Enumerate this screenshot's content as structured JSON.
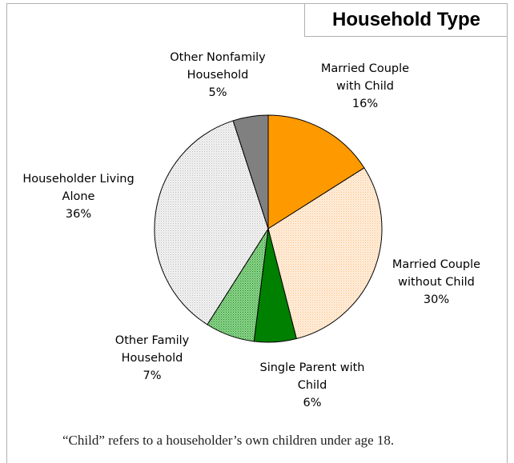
{
  "chart_data": {
    "type": "pie",
    "title": "Household Type",
    "slices": [
      {
        "label_lines": [
          "Married Couple",
          "with Child"
        ],
        "value": 16,
        "display": "16%",
        "color": "#ff9900",
        "pattern": "solid"
      },
      {
        "label_lines": [
          "Married Couple",
          "without Child"
        ],
        "value": 30,
        "display": "30%",
        "color": "#ffdcb8",
        "pattern": "hatch-peach"
      },
      {
        "label_lines": [
          "Single Parent with",
          "Child"
        ],
        "value": 6,
        "display": "6%",
        "color": "#008000",
        "pattern": "solid"
      },
      {
        "label_lines": [
          "Other Family",
          "Household"
        ],
        "value": 7,
        "display": "7%",
        "color": "#4cae4c",
        "pattern": "hatch-green"
      },
      {
        "label_lines": [
          "Householder Living",
          "Alone"
        ],
        "value": 36,
        "display": "36%",
        "color": "#d8d8d8",
        "pattern": "hatch-gray"
      },
      {
        "label_lines": [
          "Other Nonfamily",
          "Household"
        ],
        "value": 5,
        "display": "5%",
        "color": "#808080",
        "pattern": "solid"
      }
    ]
  },
  "footnote": "“Child” refers to a householder’s own children under age 18."
}
